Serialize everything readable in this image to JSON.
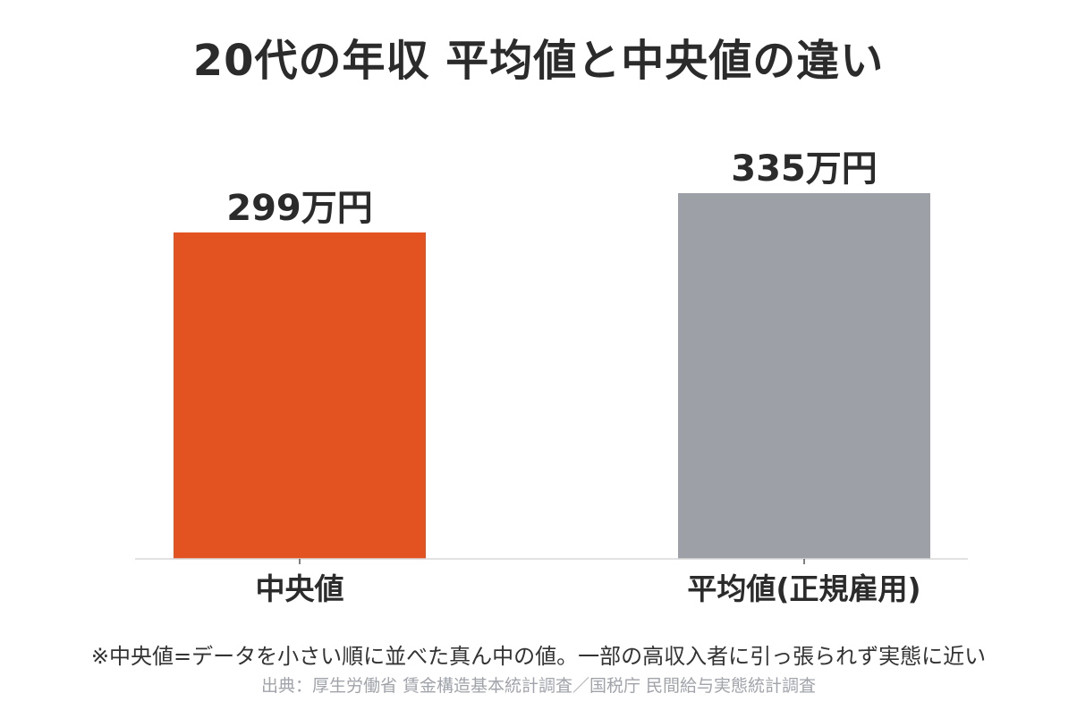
{
  "chart_data": {
    "type": "bar",
    "title": "20代の年収 平均値と中央値の違い",
    "categories": [
      "中央値",
      "平均値(正規雇用)"
    ],
    "values": [
      299,
      335
    ],
    "data_labels": [
      "299万円",
      "335万円"
    ],
    "unit": "万円",
    "colors": [
      "#e35221",
      "#9da0a7"
    ],
    "ylim": [
      0,
      370
    ],
    "grid": false,
    "legend": "none",
    "xlabel": "",
    "ylabel": ""
  },
  "footnote": "※中央値=データを小さい順に並べた真ん中の値。一部の高収入者に引っ張られず実態に近い",
  "source": "出典：厚生労働省 賃金構造基本統計調査／国税庁 民間給与実態統計調査"
}
